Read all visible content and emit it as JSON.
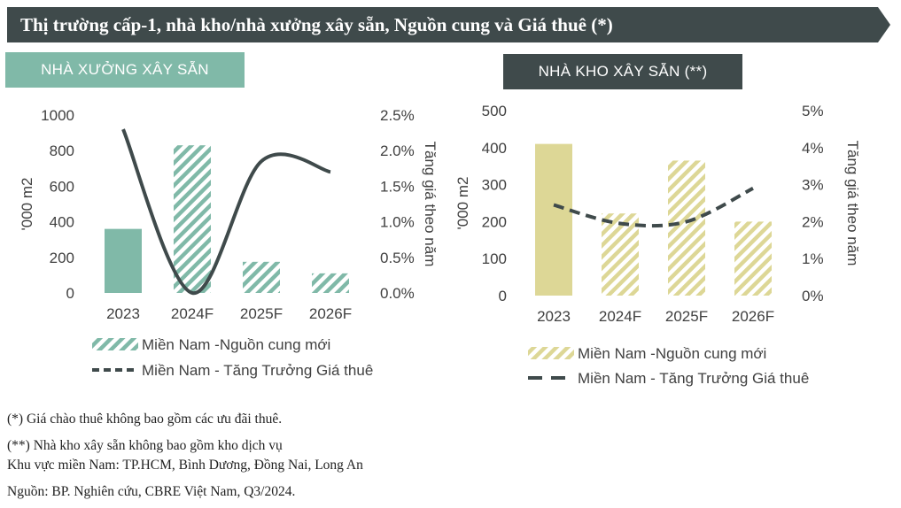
{
  "header": {
    "title": "Thị trường cấp-1, nhà kho/nhà xưởng xây sẵn, Nguồn cung và Giá thuê (*)"
  },
  "colors": {
    "banner": "#3f4a4b",
    "teal": "#80b9a8",
    "khaki": "#ddd796",
    "line": "#3f4a4b"
  },
  "chart_data": [
    {
      "type": "bar",
      "title": "NHÀ XƯỞNG XÂY SẴN",
      "categories": [
        "2023",
        "2024F",
        "2025F",
        "2026F"
      ],
      "ylabel": "'000 m2",
      "y2label": "Tăng giá theo năm",
      "ylim": [
        0,
        1000
      ],
      "y2lim": [
        0,
        2.5
      ],
      "yticks": [
        "0",
        "200",
        "400",
        "600",
        "800",
        "1000"
      ],
      "y2ticks": [
        "0.0%",
        "0.5%",
        "1.0%",
        "1.5%",
        "2.0%",
        "2.5%"
      ],
      "series": [
        {
          "name": "Miền Nam -Nguồn cung mới",
          "type": "bar",
          "values": [
            360,
            830,
            175,
            110
          ],
          "hatched": [
            false,
            true,
            true,
            true
          ]
        },
        {
          "name": "Miền Nam - Tăng Trưởng Giá thuê",
          "type": "line",
          "axis": "right",
          "values": [
            2.3,
            0.0,
            1.85,
            1.7
          ]
        }
      ]
    },
    {
      "type": "bar",
      "title": "NHÀ KHO XÂY SẴN (**)",
      "categories": [
        "2023",
        "2024F",
        "2025F",
        "2026F"
      ],
      "ylabel": "'000 m2",
      "y2label": "Tăng giá theo năm",
      "ylim": [
        0,
        500
      ],
      "y2lim": [
        0,
        5
      ],
      "yticks": [
        "0",
        "100",
        "200",
        "300",
        "400",
        "500"
      ],
      "y2ticks": [
        "0%",
        "1%",
        "2%",
        "3%",
        "4%",
        "5%"
      ],
      "series": [
        {
          "name": "Miền Nam -Nguồn cung mới",
          "type": "bar",
          "values": [
            410,
            222,
            365,
            200
          ],
          "hatched": [
            false,
            true,
            true,
            true
          ]
        },
        {
          "name": "Miền Nam - Tăng Trưởng Giá thuê",
          "type": "line",
          "axis": "right",
          "values": [
            2.45,
            1.95,
            2.0,
            2.9
          ]
        }
      ]
    }
  ],
  "notes": {
    "note1": "(*) Giá chào thuê không bao gồm các ưu đãi thuê.",
    "note2": "(**) Nhà kho xây sẵn không bao gồm kho dịch vụ",
    "note3": "Khu vực miền Nam: TP.HCM, Bình Dương, Đồng Nai, Long An",
    "source": "Nguồn: BP. Nghiên cứu, CBRE Việt Nam, Q3/2024."
  }
}
